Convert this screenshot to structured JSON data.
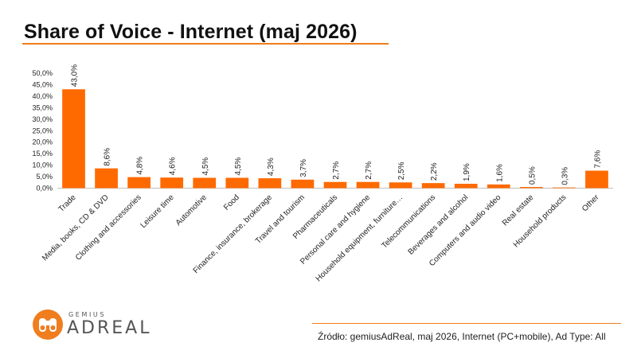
{
  "title": "Share of Voice - Internet (maj 2026)",
  "logo": {
    "small": "GEMIUS",
    "big": "ADREAL"
  },
  "source": "Źródło: gemiusAdReal, maj 2026, Internet (PC+mobile), Ad Type: All",
  "colors": {
    "accent": "#f07d1e",
    "bar": "#ff6a00",
    "text": "#222222"
  },
  "chart_data": {
    "type": "bar",
    "title": "Share of Voice - Internet (maj 2026)",
    "xlabel": "",
    "ylabel": "",
    "ylim": [
      0,
      50
    ],
    "yticks": [
      "0,0%",
      "5,0%",
      "10,0%",
      "15,0%",
      "20,0%",
      "25,0%",
      "30,0%",
      "35,0%",
      "40,0%",
      "45,0%",
      "50,0%"
    ],
    "grid": false,
    "categories": [
      "Trade",
      "Media, books, CD & DVD",
      "Clothing and accessories",
      "Leisure time",
      "Automotive",
      "Food",
      "Finance, insurance, brokerage",
      "Travel and tourism",
      "Pharmaceuticals",
      "Personal care and hygiene",
      "Household equipment, furniture…",
      "Telecommunications",
      "Beverages and alcohol",
      "Computers and audio video",
      "Real estate",
      "Household products",
      "Other"
    ],
    "values": [
      43.0,
      8.6,
      4.8,
      4.6,
      4.5,
      4.5,
      4.3,
      3.7,
      2.7,
      2.7,
      2.5,
      2.2,
      1.9,
      1.6,
      0.5,
      0.3,
      7.6
    ],
    "labels": [
      "43,0%",
      "8,6%",
      "4,8%",
      "4,6%",
      "4,5%",
      "4,5%",
      "4,3%",
      "3,7%",
      "2,7%",
      "2,7%",
      "2,5%",
      "2,2%",
      "1,9%",
      "1,6%",
      "0,5%",
      "0,3%",
      "7,6%"
    ]
  }
}
